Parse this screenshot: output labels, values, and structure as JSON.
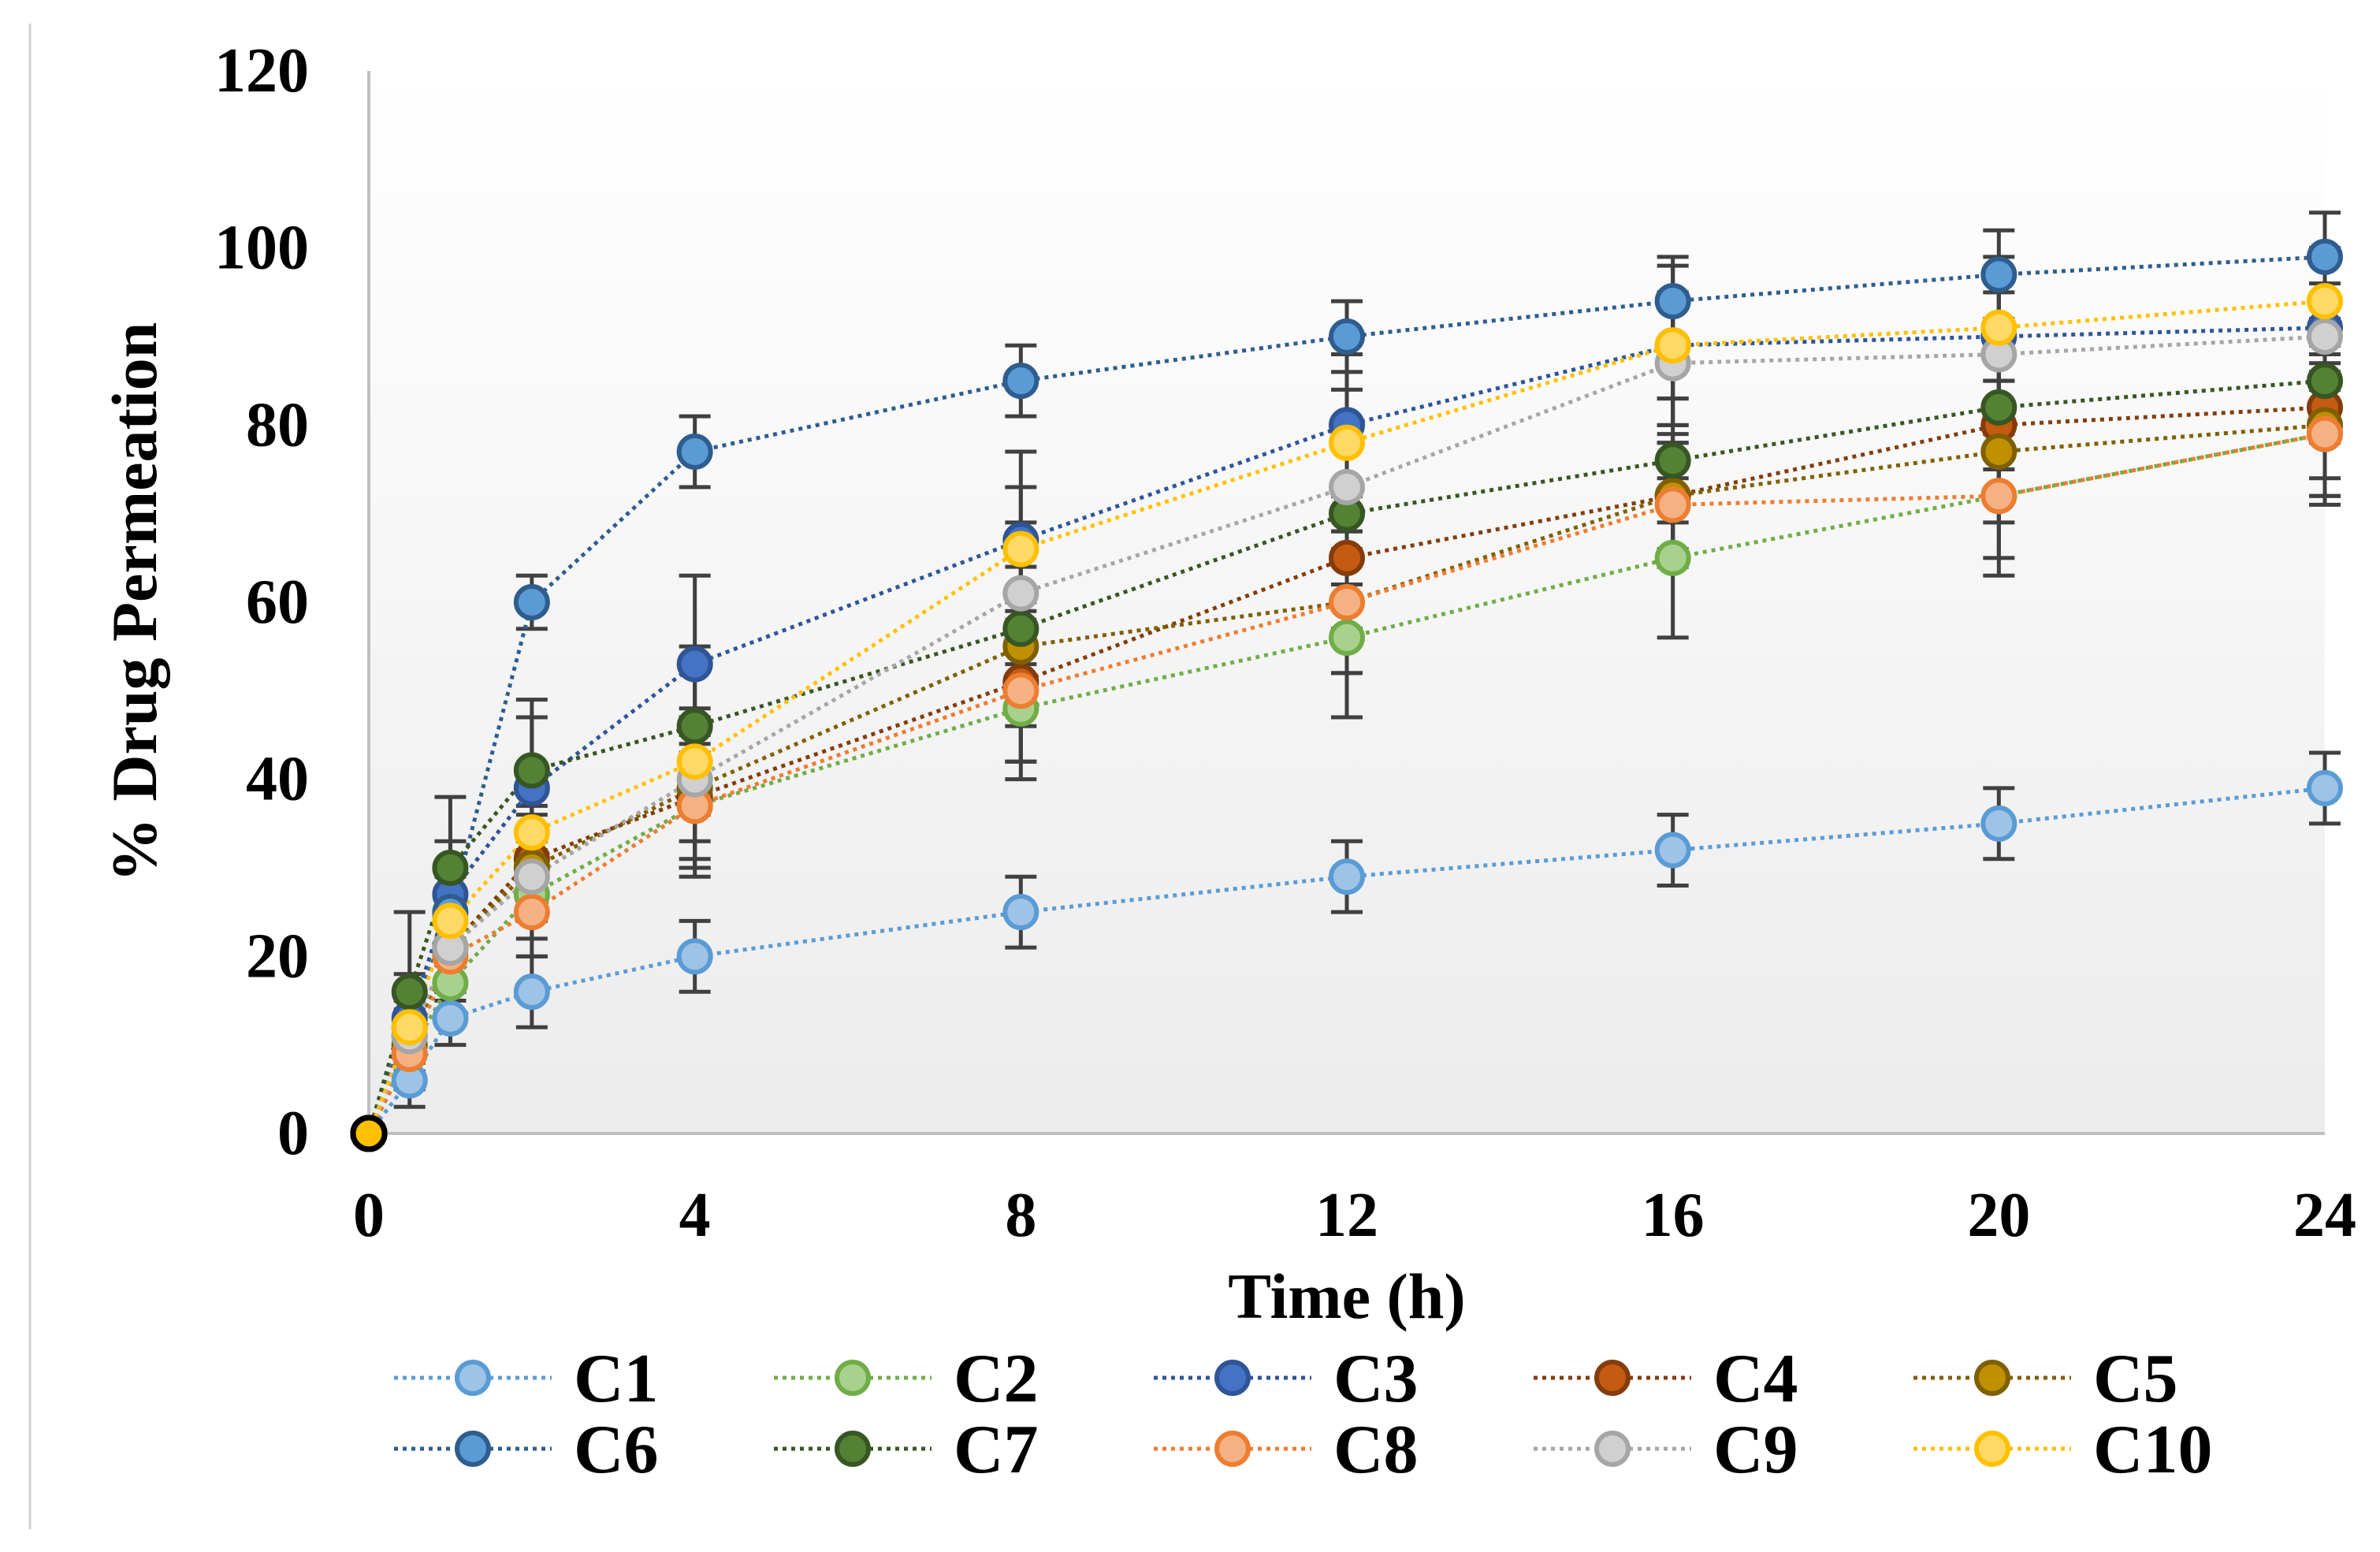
{
  "chart_data": {
    "type": "line",
    "title": "",
    "xlabel": "Time (h)",
    "ylabel": "% Drug Permeation",
    "xlim": [
      0,
      24
    ],
    "ylim": [
      0,
      120
    ],
    "xticks": [
      "0",
      "4",
      "8",
      "12",
      "16",
      "20",
      "24"
    ],
    "yticks": [
      "0",
      "20",
      "40",
      "60",
      "80",
      "100",
      "120"
    ],
    "x": [
      0,
      0.5,
      1,
      2,
      4,
      8,
      12,
      16,
      20,
      24
    ],
    "grid": false,
    "legend_position": "bottom",
    "series": [
      {
        "name": "C1",
        "color": "#9DC3E6",
        "stroke": "#5B9BD5",
        "values": [
          0,
          6,
          13,
          16,
          20,
          25,
          29,
          32,
          35,
          39
        ],
        "errors": [
          1,
          3,
          3,
          4,
          4,
          4,
          4,
          4,
          4,
          4
        ]
      },
      {
        "name": "C2",
        "color": "#A9D18E",
        "stroke": "#70AD47",
        "values": [
          0,
          9,
          17,
          27,
          37,
          48,
          56,
          65,
          72,
          79
        ],
        "errors": [
          1,
          4,
          4,
          5,
          8,
          8,
          9,
          9,
          9,
          8
        ]
      },
      {
        "name": "C3",
        "color": "#4472C4",
        "stroke": "#2F5597",
        "values": [
          0,
          13,
          27,
          39,
          53,
          67,
          80,
          89,
          90,
          91
        ],
        "errors": [
          1,
          5,
          6,
          8,
          10,
          10,
          8,
          9,
          9,
          9
        ]
      },
      {
        "name": "C4",
        "color": "#C55A11",
        "stroke": "#843C0C",
        "values": [
          0,
          11,
          21,
          31,
          38,
          51,
          65,
          72,
          80,
          82
        ],
        "errors": [
          1,
          4,
          5,
          6,
          8,
          9,
          8,
          6,
          8,
          8
        ]
      },
      {
        "name": "C5",
        "color": "#BF9000",
        "stroke": "#7F6000",
        "values": [
          0,
          10,
          21,
          30,
          39,
          55,
          60,
          72,
          77,
          80
        ],
        "errors": [
          1,
          4,
          5,
          6,
          8,
          9,
          8,
          7,
          8,
          8
        ]
      },
      {
        "name": "C6",
        "color": "#5B9BD5",
        "stroke": "#2E5D8E",
        "values": [
          0,
          12,
          25,
          60,
          77,
          85,
          90,
          94,
          97,
          99
        ],
        "errors": [
          1,
          4,
          5,
          3,
          4,
          4,
          4,
          5,
          5,
          5
        ]
      },
      {
        "name": "C7",
        "color": "#548235",
        "stroke": "#375623",
        "values": [
          0,
          16,
          30,
          41,
          46,
          57,
          70,
          76,
          82,
          85
        ],
        "errors": [
          1,
          9,
          8,
          8,
          9,
          9,
          8,
          7,
          7,
          7
        ]
      },
      {
        "name": "C8",
        "color": "#F4B183",
        "stroke": "#ED7D31",
        "values": [
          0,
          9,
          20,
          25,
          37,
          50,
          60,
          71,
          72,
          79
        ],
        "errors": [
          1,
          4,
          5,
          5,
          7,
          8,
          8,
          7,
          7,
          7
        ]
      },
      {
        "name": "C9",
        "color": "#D0D0D0",
        "stroke": "#A6A6A6",
        "values": [
          0,
          11,
          21,
          29,
          40,
          61,
          73,
          87,
          88,
          90
        ],
        "errors": [
          1,
          4,
          5,
          5,
          7,
          8,
          7,
          7,
          7,
          6
        ]
      },
      {
        "name": "C10",
        "color": "#FFD966",
        "stroke": "#FFC000",
        "values": [
          0,
          12,
          24,
          34,
          42,
          66,
          78,
          89,
          91,
          94
        ],
        "errors": [
          1,
          4,
          5,
          5,
          6,
          7,
          6,
          6,
          6,
          5
        ]
      }
    ]
  }
}
